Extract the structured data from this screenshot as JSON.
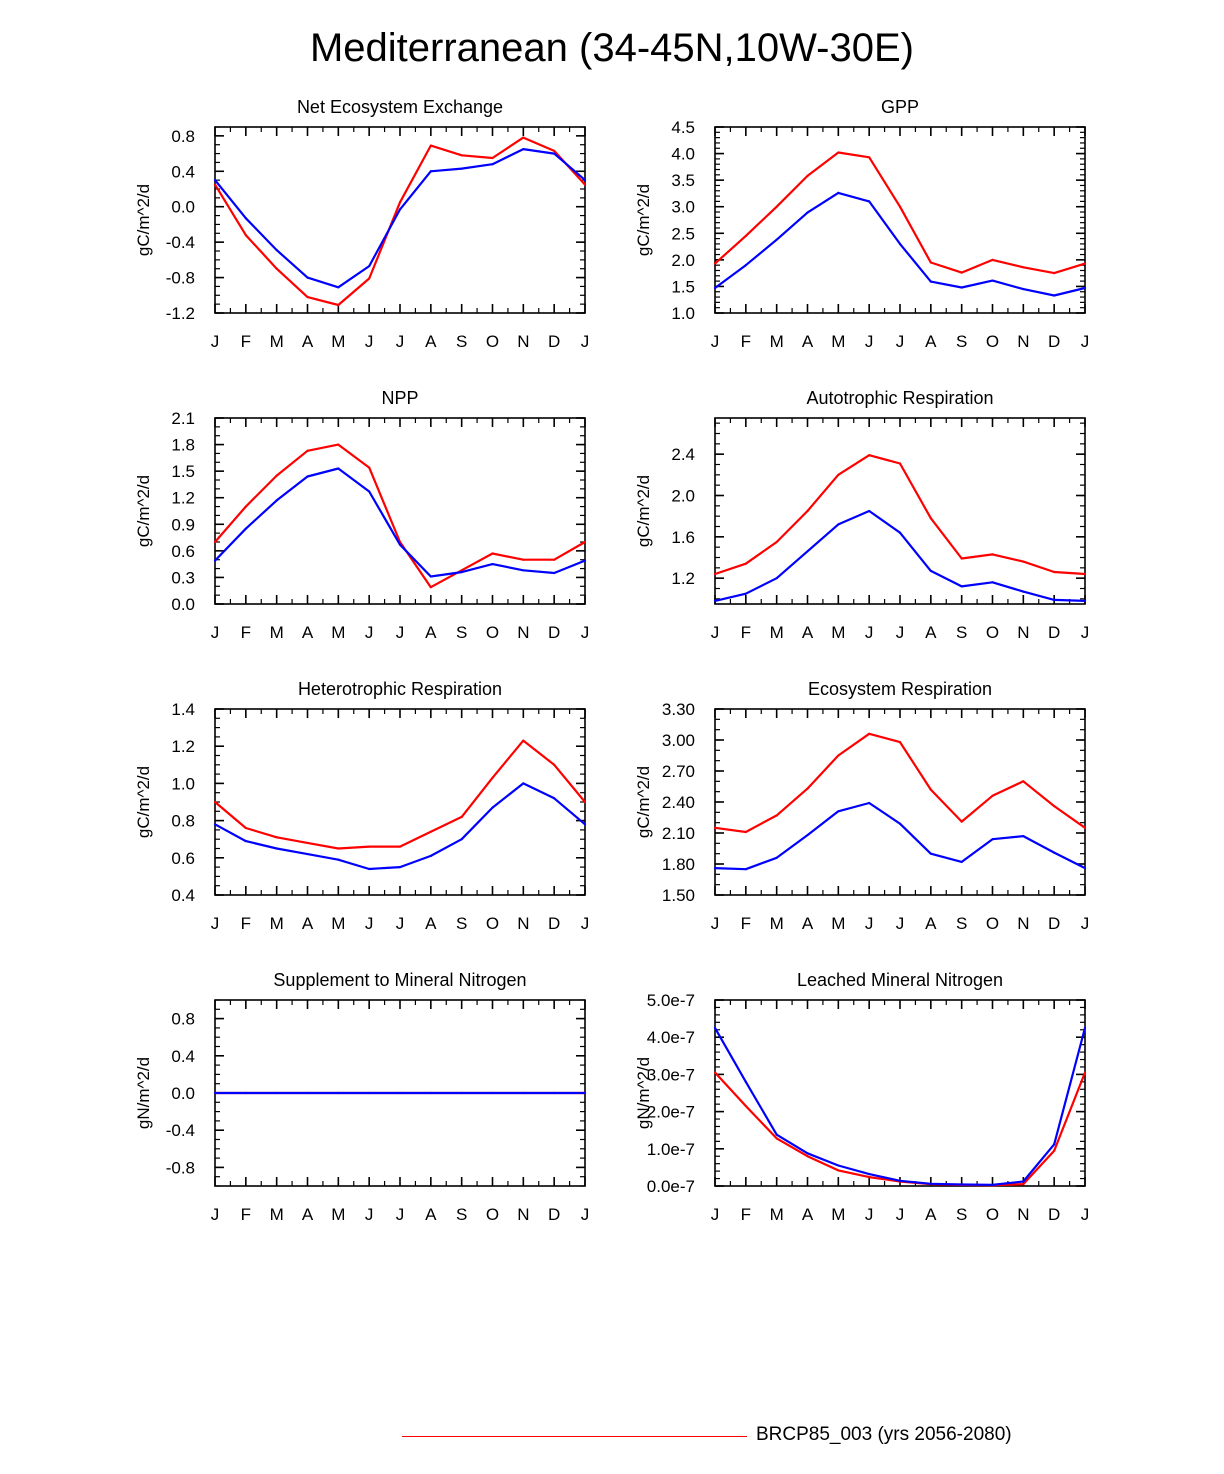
{
  "title": "Mediterranean (34-45N,10W-30E)",
  "months": [
    "J",
    "F",
    "M",
    "A",
    "M",
    "J",
    "J",
    "A",
    "S",
    "O",
    "N",
    "D",
    "J"
  ],
  "colors": {
    "series1": "#ff0000",
    "series2": "#0000ff",
    "axis": "#000000"
  },
  "legend": {
    "label": "BRCP85_003 (yrs 2056-2080)",
    "color": "#ff0000"
  },
  "chart_data": [
    {
      "type": "line",
      "title": "Net Ecosystem Exchange",
      "ylabel": "gC/m^2/d",
      "ylim": [
        -1.2,
        0.9
      ],
      "yticks": [
        -1.2,
        -0.8,
        -0.4,
        0.0,
        0.4,
        0.8
      ],
      "ytick_labels": [
        "-1.2",
        "-0.8",
        "-0.4",
        "0.0",
        "0.4",
        "0.8"
      ],
      "yminor": 0.1,
      "series": [
        {
          "name": "series1",
          "color": "#ff0000",
          "values": [
            0.25,
            -0.32,
            -0.7,
            -1.02,
            -1.11,
            -0.81,
            0.05,
            0.69,
            0.58,
            0.55,
            0.78,
            0.63,
            0.25
          ]
        },
        {
          "name": "series2",
          "color": "#0000ff",
          "values": [
            0.3,
            -0.13,
            -0.49,
            -0.8,
            -0.91,
            -0.67,
            -0.03,
            0.4,
            0.43,
            0.48,
            0.65,
            0.6,
            0.3
          ]
        }
      ]
    },
    {
      "type": "line",
      "title": "GPP",
      "ylabel": "gC/m^2/d",
      "ylim": [
        1.0,
        4.5
      ],
      "yticks": [
        1.0,
        1.5,
        2.0,
        2.5,
        3.0,
        3.5,
        4.0,
        4.5
      ],
      "ytick_labels": [
        "1.0",
        "1.5",
        "2.0",
        "2.5",
        "3.0",
        "3.5",
        "4.0",
        "4.5"
      ],
      "yminor": 0.1,
      "series": [
        {
          "name": "series1",
          "color": "#ff0000",
          "values": [
            1.93,
            2.45,
            3.0,
            3.58,
            4.02,
            3.93,
            3.0,
            1.95,
            1.76,
            2.0,
            1.86,
            1.75,
            1.93
          ]
        },
        {
          "name": "series2",
          "color": "#0000ff",
          "values": [
            1.47,
            1.9,
            2.38,
            2.89,
            3.26,
            3.1,
            2.3,
            1.59,
            1.48,
            1.61,
            1.45,
            1.33,
            1.47
          ]
        }
      ]
    },
    {
      "type": "line",
      "title": "NPP",
      "ylabel": "gC/m^2/d",
      "ylim": [
        0.0,
        2.1
      ],
      "yticks": [
        0.0,
        0.3,
        0.6,
        0.9,
        1.2,
        1.5,
        1.8,
        2.1
      ],
      "ytick_labels": [
        "0.0",
        "0.3",
        "0.6",
        "0.9",
        "1.2",
        "1.5",
        "1.8",
        "2.1"
      ],
      "yminor": 0.1,
      "series": [
        {
          "name": "series1",
          "color": "#ff0000",
          "values": [
            0.7,
            1.1,
            1.45,
            1.73,
            1.8,
            1.54,
            0.7,
            0.19,
            0.38,
            0.57,
            0.5,
            0.5,
            0.7
          ]
        },
        {
          "name": "series2",
          "color": "#0000ff",
          "values": [
            0.49,
            0.85,
            1.17,
            1.44,
            1.53,
            1.27,
            0.67,
            0.31,
            0.36,
            0.45,
            0.38,
            0.35,
            0.49
          ]
        }
      ]
    },
    {
      "type": "line",
      "title": "Autotrophic Respiration",
      "ylabel": "gC/m^2/d",
      "ylim": [
        0.95,
        2.75
      ],
      "yticks": [
        1.2,
        1.6,
        2.0,
        2.4
      ],
      "ytick_labels": [
        "1.2",
        "1.6",
        "2.0",
        "2.4"
      ],
      "yminor": 0.1,
      "series": [
        {
          "name": "series1",
          "color": "#ff0000",
          "values": [
            1.24,
            1.34,
            1.55,
            1.85,
            2.2,
            2.39,
            2.31,
            1.78,
            1.39,
            1.43,
            1.36,
            1.26,
            1.24
          ]
        },
        {
          "name": "series2",
          "color": "#0000ff",
          "values": [
            0.98,
            1.05,
            1.2,
            1.46,
            1.72,
            1.85,
            1.64,
            1.27,
            1.12,
            1.16,
            1.07,
            0.99,
            0.98
          ]
        }
      ]
    },
    {
      "type": "line",
      "title": "Heterotrophic Respiration",
      "ylabel": "gC/m^2/d",
      "ylim": [
        0.4,
        1.4
      ],
      "yticks": [
        0.4,
        0.6,
        0.8,
        1.0,
        1.2,
        1.4
      ],
      "ytick_labels": [
        "0.4",
        "0.6",
        "0.8",
        "1.0",
        "1.2",
        "1.4"
      ],
      "yminor": 0.05,
      "series": [
        {
          "name": "series1",
          "color": "#ff0000",
          "values": [
            0.9,
            0.76,
            0.71,
            0.68,
            0.65,
            0.66,
            0.66,
            0.74,
            0.82,
            1.03,
            1.23,
            1.1,
            0.9
          ]
        },
        {
          "name": "series2",
          "color": "#0000ff",
          "values": [
            0.78,
            0.69,
            0.65,
            0.62,
            0.59,
            0.54,
            0.55,
            0.61,
            0.7,
            0.87,
            1.0,
            0.92,
            0.78
          ]
        }
      ]
    },
    {
      "type": "line",
      "title": "Ecosystem Respiration",
      "ylabel": "gC/m^2/d",
      "ylim": [
        1.5,
        3.3
      ],
      "yticks": [
        1.5,
        1.8,
        2.1,
        2.4,
        2.7,
        3.0,
        3.3
      ],
      "ytick_labels": [
        "1.50",
        "1.80",
        "2.10",
        "2.40",
        "2.70",
        "3.00",
        "3.30"
      ],
      "yminor": 0.1,
      "series": [
        {
          "name": "series1",
          "color": "#ff0000",
          "values": [
            2.15,
            2.11,
            2.27,
            2.53,
            2.85,
            3.06,
            2.98,
            2.52,
            2.21,
            2.46,
            2.6,
            2.36,
            2.15
          ]
        },
        {
          "name": "series2",
          "color": "#0000ff",
          "values": [
            1.76,
            1.75,
            1.86,
            2.08,
            2.31,
            2.39,
            2.19,
            1.9,
            1.82,
            2.04,
            2.07,
            1.91,
            1.76
          ]
        }
      ]
    },
    {
      "type": "line",
      "title": "Supplement to Mineral Nitrogen",
      "ylabel": "gN/m^2/d",
      "ylim": [
        -1.0,
        1.0
      ],
      "yticks": [
        -0.8,
        -0.4,
        0.0,
        0.4,
        0.8
      ],
      "ytick_labels": [
        "-0.8",
        "-0.4",
        "0.0",
        "0.4",
        "0.8"
      ],
      "yminor": 0.1,
      "series": [
        {
          "name": "series1",
          "color": "#ff0000",
          "values": [
            0,
            0,
            0,
            0,
            0,
            0,
            0,
            0,
            0,
            0,
            0,
            0,
            0
          ]
        },
        {
          "name": "series2",
          "color": "#0000ff",
          "values": [
            0,
            0,
            0,
            0,
            0,
            0,
            0,
            0,
            0,
            0,
            0,
            0,
            0
          ]
        }
      ]
    },
    {
      "type": "line",
      "title": "Leached Mineral Nitrogen",
      "ylabel": "gN/m^2/d",
      "ylim": [
        0.0,
        5e-07
      ],
      "yticks": [
        0.0,
        1e-07,
        2e-07,
        3e-07,
        4e-07,
        5e-07
      ],
      "ytick_labels": [
        "0.0e-7",
        "1.0e-7",
        "2.0e-7",
        "3.0e-7",
        "4.0e-7",
        "5.0e-7"
      ],
      "yminor": 2e-08,
      "series": [
        {
          "name": "series1",
          "color": "#ff0000",
          "values": [
            3.05e-07,
            2.15e-07,
            1.28e-07,
            8e-08,
            4.2e-08,
            2.4e-08,
            1.2e-08,
            5e-09,
            3e-09,
            2e-09,
            5e-09,
            9.5e-08,
            3.05e-07
          ]
        },
        {
          "name": "series2",
          "color": "#0000ff",
          "values": [
            4.25e-07,
            2.8e-07,
            1.38e-07,
            8.8e-08,
            5.5e-08,
            3.2e-08,
            1.4e-08,
            6e-09,
            4e-09,
            3e-09,
            1.2e-08,
            1.12e-07,
            4.25e-07
          ]
        }
      ]
    }
  ]
}
